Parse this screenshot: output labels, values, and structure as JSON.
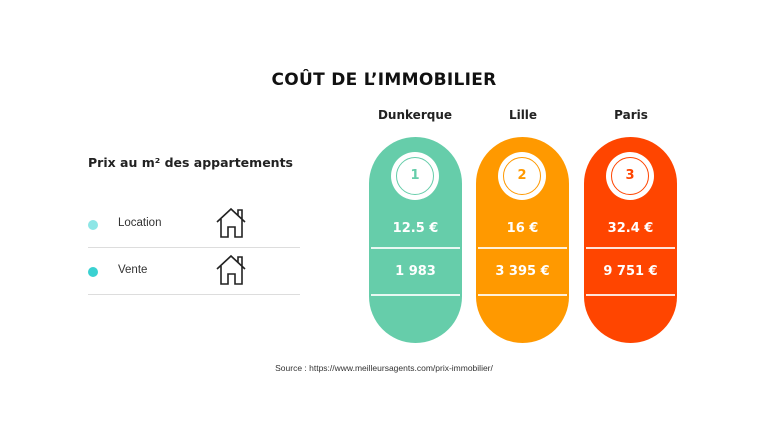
{
  "title": "COÛT DE L’IMMOBILIER",
  "legend": {
    "subtitle": "Prix au m² des appartements",
    "items": [
      {
        "label": "Location",
        "color": "#8de6e6",
        "icon": "house-icon"
      },
      {
        "label": "Vente",
        "color": "#3ad1d1",
        "icon": "house-icon"
      }
    ]
  },
  "cities": [
    {
      "name": "Dunkerque",
      "rank": "1",
      "location": "12.5 €",
      "vente": "1 983",
      "color": "#66cdaa"
    },
    {
      "name": "Lille",
      "rank": "2",
      "location": "16 €",
      "vente": "3 395 €",
      "color": "#ff9900"
    },
    {
      "name": "Paris",
      "rank": "3",
      "location": "32.4 €",
      "vente": "9 751 €",
      "color": "#ff4500"
    }
  ],
  "source": "Source : https://www.meilleursagents.com/prix-immobilier/"
}
